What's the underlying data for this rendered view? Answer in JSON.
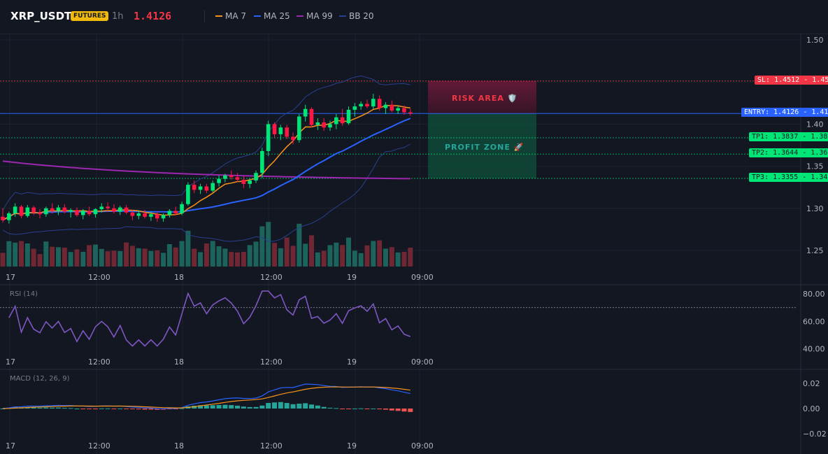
{
  "header": {
    "symbol": "XRP_USDT",
    "badge": "FUTURES",
    "timeframe": "1h",
    "last_price": "1.4126",
    "legend": [
      {
        "name": "MA 7",
        "color": "#f7931a"
      },
      {
        "name": "MA 25",
        "color": "#2962ff"
      },
      {
        "name": "MA 99",
        "color": "#9c27b0"
      },
      {
        "name": "BB 20",
        "color": "#2a3f8f"
      }
    ]
  },
  "price_axis": [
    "1.50",
    "1.45",
    "1.40",
    "1.35",
    "1.30",
    "1.25"
  ],
  "time_axis": [
    "17",
    "12:00",
    "18",
    "12:00",
    "19",
    "09:00"
  ],
  "levels": {
    "sl": {
      "label": "SL: 1.4512",
      "axis": "1.45",
      "value": 1.4512,
      "color": "#f23645"
    },
    "entry": {
      "label": "ENTRY: 1.4126",
      "axis": "1.41",
      "value": 1.4126,
      "color": "#2962ff"
    },
    "tp1": {
      "label": "TP1: 1.3837",
      "axis": "1.38",
      "value": 1.3837,
      "color": "#00e676"
    },
    "tp2": {
      "label": "TP2: 1.3644",
      "axis": "1.36",
      "value": 1.3644,
      "color": "#00e676"
    },
    "tp3": {
      "label": "TP3: 1.3355",
      "axis": "1.34",
      "value": 1.3355,
      "color": "#00e676"
    }
  },
  "zones": {
    "risk": {
      "label": "RISK AREA 🛡️"
    },
    "profit": {
      "label": "PROFIT ZONE 🚀"
    }
  },
  "rsi": {
    "label": "RSI (14)",
    "axis": [
      "80.00",
      "60.00",
      "40.00"
    ],
    "overbought": 70
  },
  "macd": {
    "label": "MACD (12, 26, 9)",
    "axis": [
      "0.02",
      "0.00",
      "−0.02"
    ]
  },
  "chart_data": {
    "type": "candlestick",
    "ylim": [
      1.225,
      1.51
    ],
    "candles": [
      [
        1.29,
        1.3,
        1.283,
        1.286
      ],
      [
        1.286,
        1.296,
        1.282,
        1.294
      ],
      [
        1.294,
        1.306,
        1.29,
        1.302
      ],
      [
        1.302,
        1.304,
        1.288,
        1.291
      ],
      [
        1.291,
        1.304,
        1.289,
        1.301
      ],
      [
        1.301,
        1.303,
        1.292,
        1.295
      ],
      [
        1.295,
        1.299,
        1.288,
        1.293
      ],
      [
        1.293,
        1.302,
        1.29,
        1.3
      ],
      [
        1.3,
        1.306,
        1.294,
        1.297
      ],
      [
        1.297,
        1.304,
        1.292,
        1.301
      ],
      [
        1.301,
        1.305,
        1.294,
        1.296
      ],
      [
        1.296,
        1.3,
        1.289,
        1.298
      ],
      [
        1.298,
        1.301,
        1.29,
        1.292
      ],
      [
        1.292,
        1.299,
        1.287,
        1.297
      ],
      [
        1.297,
        1.302,
        1.291,
        1.293
      ],
      [
        1.293,
        1.3,
        1.289,
        1.299
      ],
      [
        1.299,
        1.306,
        1.295,
        1.302
      ],
      [
        1.302,
        1.307,
        1.296,
        1.3
      ],
      [
        1.3,
        1.305,
        1.294,
        1.296
      ],
      [
        1.296,
        1.303,
        1.292,
        1.301
      ],
      [
        1.301,
        1.304,
        1.293,
        1.295
      ],
      [
        1.295,
        1.298,
        1.286,
        1.291
      ],
      [
        1.291,
        1.297,
        1.287,
        1.294
      ],
      [
        1.294,
        1.298,
        1.288,
        1.29
      ],
      [
        1.29,
        1.296,
        1.285,
        1.293
      ],
      [
        1.293,
        1.296,
        1.284,
        1.288
      ],
      [
        1.288,
        1.294,
        1.284,
        1.292
      ],
      [
        1.292,
        1.299,
        1.289,
        1.297
      ],
      [
        1.297,
        1.302,
        1.292,
        1.294
      ],
      [
        1.294,
        1.308,
        1.292,
        1.305
      ],
      [
        1.305,
        1.331,
        1.303,
        1.328
      ],
      [
        1.328,
        1.333,
        1.318,
        1.322
      ],
      [
        1.322,
        1.329,
        1.317,
        1.326
      ],
      [
        1.326,
        1.329,
        1.318,
        1.321
      ],
      [
        1.321,
        1.333,
        1.319,
        1.33
      ],
      [
        1.33,
        1.339,
        1.326,
        1.335
      ],
      [
        1.335,
        1.341,
        1.331,
        1.339
      ],
      [
        1.339,
        1.345,
        1.334,
        1.337
      ],
      [
        1.337,
        1.342,
        1.331,
        1.334
      ],
      [
        1.334,
        1.338,
        1.324,
        1.329
      ],
      [
        1.329,
        1.336,
        1.324,
        1.333
      ],
      [
        1.333,
        1.345,
        1.33,
        1.342
      ],
      [
        1.342,
        1.372,
        1.336,
        1.368
      ],
      [
        1.368,
        1.404,
        1.362,
        1.4
      ],
      [
        1.4,
        1.402,
        1.384,
        1.388
      ],
      [
        1.388,
        1.399,
        1.381,
        1.396
      ],
      [
        1.396,
        1.399,
        1.382,
        1.385
      ],
      [
        1.385,
        1.39,
        1.376,
        1.381
      ],
      [
        1.381,
        1.412,
        1.378,
        1.409
      ],
      [
        1.409,
        1.423,
        1.403,
        1.418
      ],
      [
        1.418,
        1.42,
        1.396,
        1.399
      ],
      [
        1.399,
        1.407,
        1.393,
        1.402
      ],
      [
        1.402,
        1.407,
        1.392,
        1.396
      ],
      [
        1.396,
        1.404,
        1.392,
        1.4
      ],
      [
        1.4,
        1.412,
        1.394,
        1.408
      ],
      [
        1.408,
        1.418,
        1.398,
        1.401
      ],
      [
        1.401,
        1.421,
        1.399,
        1.417
      ],
      [
        1.417,
        1.425,
        1.409,
        1.421
      ],
      [
        1.421,
        1.427,
        1.417,
        1.424
      ],
      [
        1.424,
        1.429,
        1.419,
        1.421
      ],
      [
        1.421,
        1.436,
        1.418,
        1.43
      ],
      [
        1.43,
        1.434,
        1.416,
        1.419
      ],
      [
        1.419,
        1.426,
        1.412,
        1.423
      ],
      [
        1.423,
        1.428,
        1.414,
        1.416
      ],
      [
        1.416,
        1.422,
        1.412,
        1.419
      ],
      [
        1.419,
        1.422,
        1.411,
        1.414
      ],
      [
        1.414,
        1.418,
        1.41,
        1.4126
      ]
    ]
  }
}
